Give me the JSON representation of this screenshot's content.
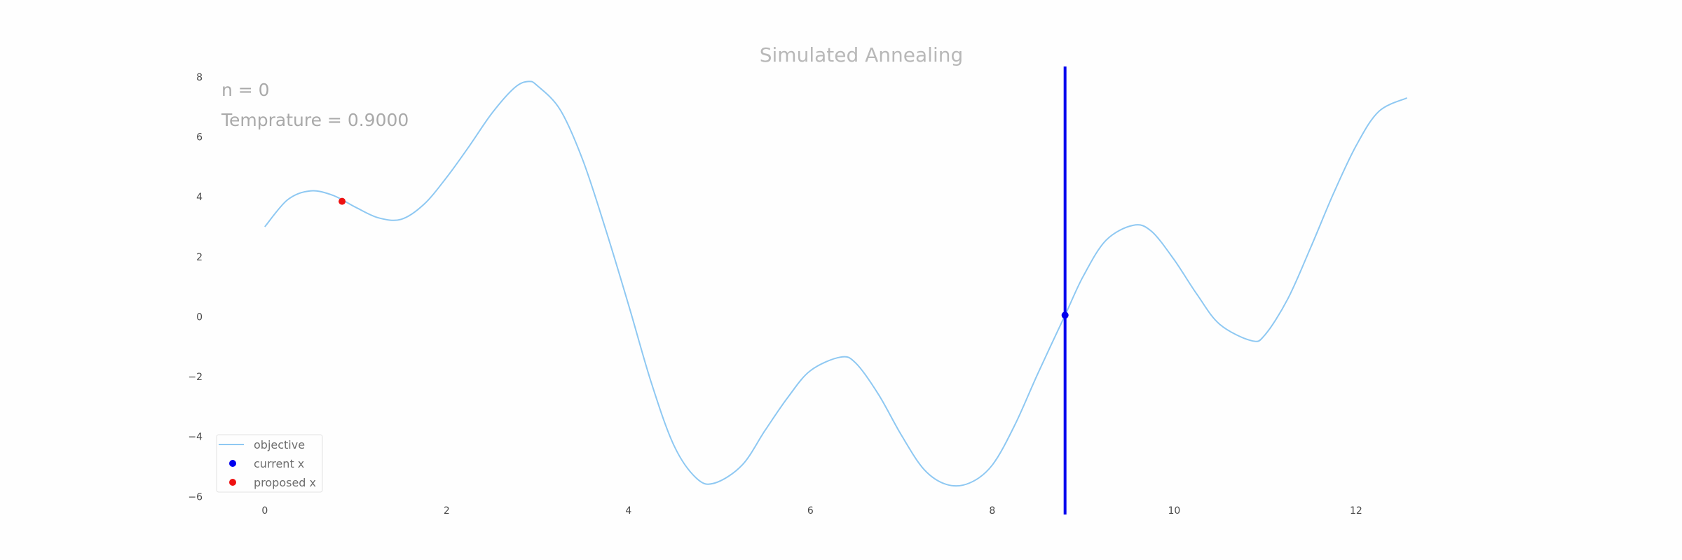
{
  "chart_data": {
    "type": "line",
    "title": "Simulated Annealing",
    "xlabel": "",
    "ylabel": "",
    "xlim": [
      -0.8,
      13.75
    ],
    "ylim": [
      -6.25,
      8.35
    ],
    "x_ticks": [
      0,
      2,
      4,
      6,
      8,
      10,
      12
    ],
    "y_ticks": [
      8,
      6,
      4,
      2,
      0,
      -2,
      -4,
      -6
    ],
    "x_tick_labels": [
      "0",
      "2",
      "4",
      "6",
      "8",
      "10",
      "12"
    ],
    "y_tick_labels": [
      "8",
      "6",
      "4",
      "2",
      "0",
      "−2",
      "−4",
      "−6"
    ],
    "grid": false,
    "legend_position": "lower-left",
    "annotations": {
      "iteration": "n = 0",
      "temperature": "Temprature = 0.9000"
    },
    "series": [
      {
        "name": "objective",
        "kind": "line",
        "color": "#8ec8f2",
        "x": [
          0,
          0.25,
          0.5,
          0.75,
          1.0,
          1.25,
          1.5,
          1.75,
          2.0,
          2.25,
          2.5,
          2.75,
          2.9,
          3.0,
          3.25,
          3.5,
          3.75,
          4.0,
          4.25,
          4.5,
          4.75,
          4.95,
          5.25,
          5.5,
          5.75,
          6.0,
          6.33,
          6.5,
          6.75,
          7.0,
          7.25,
          7.5,
          7.75,
          8.0,
          8.25,
          8.5,
          8.8,
          9.0,
          9.25,
          9.55,
          9.75,
          10.0,
          10.25,
          10.5,
          10.85,
          11.0,
          11.25,
          11.5,
          11.75,
          12.0,
          12.25,
          12.56
        ],
        "y": [
          3.0,
          3.9,
          4.2,
          4.05,
          3.65,
          3.3,
          3.25,
          3.75,
          4.65,
          5.7,
          6.8,
          7.65,
          7.85,
          7.7,
          6.9,
          5.2,
          2.9,
          0.4,
          -2.2,
          -4.3,
          -5.4,
          -5.55,
          -4.95,
          -3.8,
          -2.7,
          -1.8,
          -1.35,
          -1.55,
          -2.6,
          -3.95,
          -5.1,
          -5.6,
          -5.55,
          -4.95,
          -3.6,
          -1.9,
          0.05,
          1.35,
          2.55,
          3.05,
          2.85,
          1.9,
          0.75,
          -0.25,
          -0.8,
          -0.6,
          0.6,
          2.3,
          4.1,
          5.7,
          6.85,
          7.3
        ]
      },
      {
        "name": "current x",
        "kind": "point",
        "color": "#0000ee",
        "x": [
          8.8
        ],
        "y": [
          0.05
        ]
      },
      {
        "name": "proposed x",
        "kind": "point",
        "color": "#ee1111",
        "x": [
          0.85
        ],
        "y": [
          3.85
        ]
      }
    ],
    "vertical_line": {
      "x": 8.8,
      "color": "#0000ee"
    }
  }
}
